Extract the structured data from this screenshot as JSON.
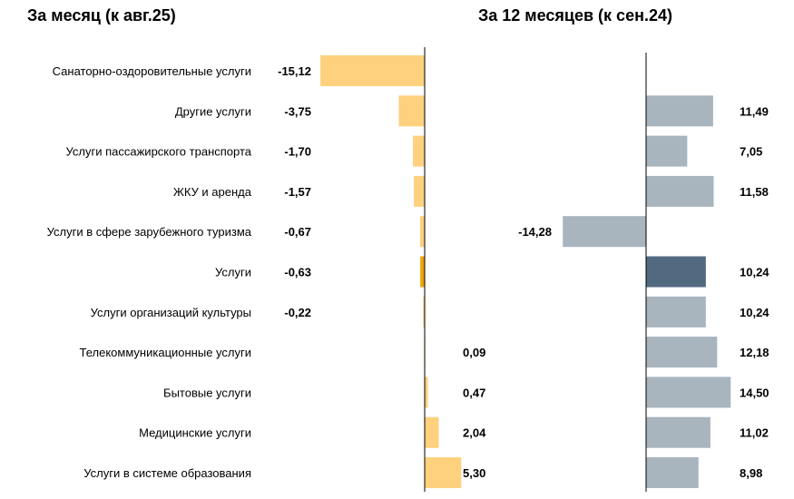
{
  "chart_data": [
    {
      "type": "bar",
      "orientation": "horizontal",
      "title": "За месяц (к авг.25)",
      "categories": [
        "Санаторно-оздоровительные услуги",
        "Другие услуги",
        "Услуги пассажирского транспорта",
        "ЖКУ и аренда",
        "Услуги в сфере зарубежного туризма",
        "Услуги",
        "Услуги организаций культуры",
        "Телекоммуникационные услуги",
        "Бытовые услуги",
        "Медицинские услуги",
        "Услуги в системе образования"
      ],
      "values": [
        -15.12,
        -3.75,
        -1.7,
        -1.57,
        -0.67,
        -0.63,
        -0.22,
        0.09,
        0.47,
        2.04,
        5.3
      ],
      "labels": [
        "-15,12",
        "-3,75",
        "-1,70",
        "-1,57",
        "-0,67",
        "-0,63",
        "-0,22",
        "0,09",
        "0,47",
        "2,04",
        "5,30"
      ],
      "highlight_index": 5,
      "colors": {
        "bar": "#FDD17E",
        "highlight": "#F0A202",
        "axis": "#000000"
      }
    },
    {
      "type": "bar",
      "orientation": "horizontal",
      "title": "За 12 месяцев (к сен.24)",
      "values": [
        null,
        11.49,
        7.05,
        11.58,
        -14.28,
        10.24,
        10.24,
        12.18,
        14.5,
        11.02,
        8.98
      ],
      "labels": [
        "",
        "11,49",
        "7,05",
        "11,58",
        "-14,28",
        "10,24",
        "10,24",
        "12,18",
        "14,50",
        "11,02",
        "8,98"
      ],
      "highlight_index": 5,
      "colors": {
        "bar": "#A8B4BE",
        "highlight": "#526A80",
        "axis": "#000000"
      }
    }
  ]
}
